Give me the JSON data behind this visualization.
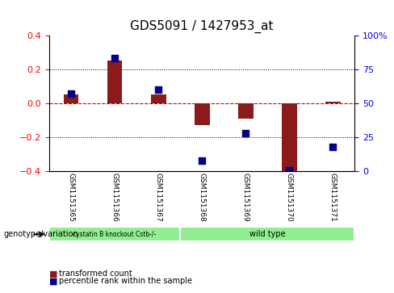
{
  "title": "GDS5091 / 1427953_at",
  "categories": [
    "GSM1151365",
    "GSM1151366",
    "GSM1151367",
    "GSM1151368",
    "GSM1151369",
    "GSM1151370",
    "GSM1151371"
  ],
  "bar_values": [
    0.05,
    0.25,
    0.05,
    -0.13,
    -0.09,
    -0.4,
    0.01
  ],
  "dot_values_pct": [
    57,
    83,
    60,
    8,
    28,
    1,
    18
  ],
  "ylim": [
    -0.4,
    0.4
  ],
  "yticks_left": [
    -0.4,
    -0.2,
    0.0,
    0.2,
    0.4
  ],
  "yticks_right": [
    0,
    25,
    50,
    75,
    100
  ],
  "bar_color": "#8B1A1A",
  "dot_color": "#00008B",
  "zero_line_color": "#CC0000",
  "grid_line_color": "#000000",
  "background_color": "#FFFFFF",
  "group1_label": "cystatin B knockout Cstb-/-",
  "group2_label": "wild type",
  "group1_color": "#90EE90",
  "group2_color": "#90EE90",
  "group1_indices": [
    0,
    1,
    2
  ],
  "group2_indices": [
    3,
    4,
    5,
    6
  ],
  "legend_bar_label": "transformed count",
  "legend_dot_label": "percentile rank within the sample",
  "genotype_label": "genotype/variation"
}
